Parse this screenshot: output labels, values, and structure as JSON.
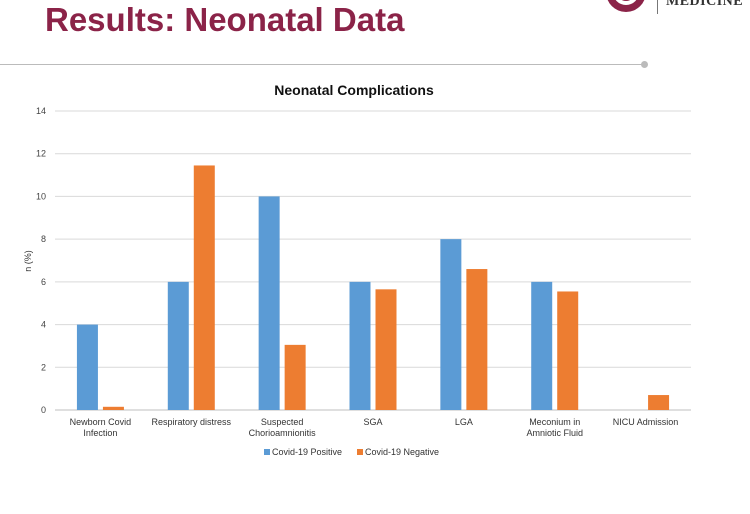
{
  "slide": {
    "title": "Results: Neonatal Data",
    "logo_text": "MEDICINE"
  },
  "colors": {
    "title": "#8b2348",
    "positive": "#5b9bd5",
    "negative": "#ed7d31",
    "grid": "#d9d9d9"
  },
  "chart_data": {
    "type": "bar",
    "title": "Neonatal Complications",
    "xlabel": "",
    "ylabel": "n (%)",
    "ylim": [
      0,
      14
    ],
    "yticks": [
      0,
      2,
      4,
      6,
      8,
      10,
      12,
      14
    ],
    "grid": true,
    "legend_position": "bottom",
    "categories": [
      [
        "Newborn Covid",
        "Infection"
      ],
      [
        "Respiratory distress"
      ],
      [
        "Suspected",
        "Chorioamnionitis"
      ],
      [
        "SGA"
      ],
      [
        "LGA"
      ],
      [
        "Meconium in",
        "Amniotic Fluid"
      ],
      [
        "NICU Admission"
      ]
    ],
    "series": [
      {
        "name": "Covid-19 Positive",
        "color": "#5b9bd5",
        "values": [
          4,
          6,
          10,
          6,
          8,
          6,
          0
        ]
      },
      {
        "name": "Covid-19 Negative",
        "color": "#ed7d31",
        "values": [
          0.15,
          11.45,
          3.05,
          5.65,
          6.6,
          5.55,
          0.7
        ]
      }
    ]
  }
}
